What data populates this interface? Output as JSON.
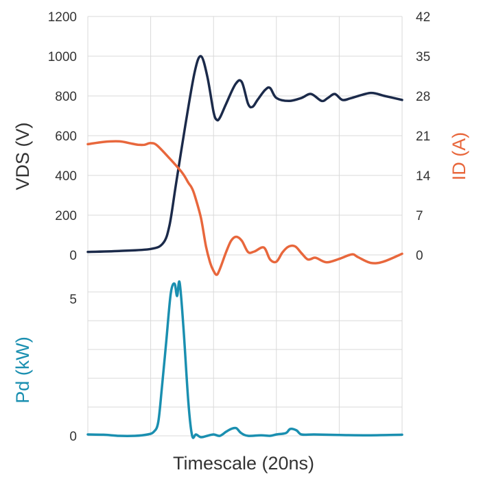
{
  "chart_data": [
    {
      "type": "line",
      "xlabel": "Timescale (20ns)",
      "xlim": [
        0,
        5
      ],
      "ylabel": "VDS (V)",
      "ylabel_color": "#333333",
      "ylim": [
        0,
        1200
      ],
      "yticks": [
        "0",
        "200",
        "400",
        "600",
        "800",
        "1000",
        "1200"
      ],
      "y2label": "ID (A)",
      "y2label_color": "#E8673C",
      "y2lim": [
        0,
        42
      ],
      "y2ticks": [
        "0",
        "7",
        "14",
        "21",
        "28",
        "35",
        "42"
      ],
      "grid": true,
      "series": [
        {
          "color": "#1B2A4A",
          "axis": "left",
          "points": [
            [
              0,
              15
            ],
            [
              0.5,
              20
            ],
            [
              1.0,
              30
            ],
            [
              1.2,
              60
            ],
            [
              1.3,
              150
            ],
            [
              1.4,
              350
            ],
            [
              1.55,
              650
            ],
            [
              1.7,
              920
            ],
            [
              1.8,
              1000
            ],
            [
              1.9,
              900
            ],
            [
              2.0,
              720
            ],
            [
              2.05,
              680
            ],
            [
              2.1,
              690
            ],
            [
              2.2,
              760
            ],
            [
              2.35,
              860
            ],
            [
              2.45,
              870
            ],
            [
              2.55,
              760
            ],
            [
              2.62,
              745
            ],
            [
              2.7,
              780
            ],
            [
              2.82,
              830
            ],
            [
              2.9,
              840
            ],
            [
              3.0,
              790
            ],
            [
              3.2,
              775
            ],
            [
              3.4,
              790
            ],
            [
              3.55,
              810
            ],
            [
              3.72,
              775
            ],
            [
              3.82,
              790
            ],
            [
              3.93,
              810
            ],
            [
              4.05,
              780
            ],
            [
              4.2,
              790
            ],
            [
              4.5,
              815
            ],
            [
              4.72,
              800
            ],
            [
              5.0,
              780
            ]
          ]
        },
        {
          "color": "#E8673C",
          "axis": "right",
          "points": [
            [
              0,
              19.5
            ],
            [
              0.25,
              19.9
            ],
            [
              0.5,
              20
            ],
            [
              0.7,
              19.6
            ],
            [
              0.8,
              19.4
            ],
            [
              0.9,
              19.4
            ],
            [
              1.0,
              19.7
            ],
            [
              1.1,
              19.3
            ],
            [
              1.3,
              17
            ],
            [
              1.5,
              14.5
            ],
            [
              1.6,
              12.7
            ],
            [
              1.65,
              11.9
            ],
            [
              1.7,
              10.5
            ],
            [
              1.8,
              6.5
            ],
            [
              1.88,
              1.5
            ],
            [
              1.95,
              -1.5
            ],
            [
              2.0,
              -2.8
            ],
            [
              2.05,
              -3.5
            ],
            [
              2.1,
              -2.5
            ],
            [
              2.2,
              0.5
            ],
            [
              2.28,
              2.5
            ],
            [
              2.36,
              3.2
            ],
            [
              2.45,
              2.5
            ],
            [
              2.55,
              0.5
            ],
            [
              2.65,
              0.6
            ],
            [
              2.8,
              1.3
            ],
            [
              2.9,
              -0.8
            ],
            [
              3.0,
              -1.2
            ],
            [
              3.1,
              0.5
            ],
            [
              3.2,
              1.5
            ],
            [
              3.3,
              1.5
            ],
            [
              3.4,
              0.3
            ],
            [
              3.5,
              -0.8
            ],
            [
              3.6,
              -0.5
            ],
            [
              3.65,
              -0.6
            ],
            [
              3.8,
              -1.3
            ],
            [
              4.0,
              -0.7
            ],
            [
              4.2,
              0.1
            ],
            [
              4.3,
              -0.4
            ],
            [
              4.5,
              -1.4
            ],
            [
              4.7,
              -1.2
            ],
            [
              5.0,
              0.2
            ]
          ]
        }
      ]
    },
    {
      "type": "line",
      "xlabel": "Timescale (20ns)",
      "xlim": [
        0,
        5
      ],
      "ylabel": "Pd (kW)",
      "ylabel_color": "#1A8FB0",
      "ylim": [
        0,
        5.8
      ],
      "yticks": [
        "0",
        "5"
      ],
      "ytick_values": [
        0,
        5
      ],
      "hgrid_values": [
        0,
        1.05,
        2.1,
        3.15,
        4.2,
        5.25
      ],
      "grid": true,
      "series": [
        {
          "color": "#1A8FB0",
          "axis": "left",
          "points": [
            [
              0,
              0.05
            ],
            [
              0.25,
              0.04
            ],
            [
              0.5,
              0.0
            ],
            [
              0.75,
              0.0
            ],
            [
              0.95,
              0.05
            ],
            [
              1.05,
              0.15
            ],
            [
              1.12,
              0.5
            ],
            [
              1.18,
              1.8
            ],
            [
              1.25,
              3.5
            ],
            [
              1.32,
              5.2
            ],
            [
              1.38,
              5.55
            ],
            [
              1.42,
              5.1
            ],
            [
              1.46,
              5.6
            ],
            [
              1.52,
              4.0
            ],
            [
              1.6,
              1.2
            ],
            [
              1.66,
              0.0
            ],
            [
              1.72,
              0.05
            ],
            [
              1.8,
              -0.05
            ],
            [
              1.9,
              0.0
            ],
            [
              2.0,
              0.05
            ],
            [
              2.1,
              0.0
            ],
            [
              2.2,
              0.15
            ],
            [
              2.28,
              0.25
            ],
            [
              2.36,
              0.28
            ],
            [
              2.44,
              0.1
            ],
            [
              2.55,
              0.0
            ],
            [
              2.75,
              0.02
            ],
            [
              2.9,
              0.0
            ],
            [
              3.0,
              0.05
            ],
            [
              3.15,
              0.1
            ],
            [
              3.22,
              0.25
            ],
            [
              3.32,
              0.2
            ],
            [
              3.4,
              0.05
            ],
            [
              3.6,
              0.05
            ],
            [
              4.0,
              0.03
            ],
            [
              4.5,
              0.02
            ],
            [
              5.0,
              0.04
            ]
          ]
        }
      ]
    }
  ]
}
